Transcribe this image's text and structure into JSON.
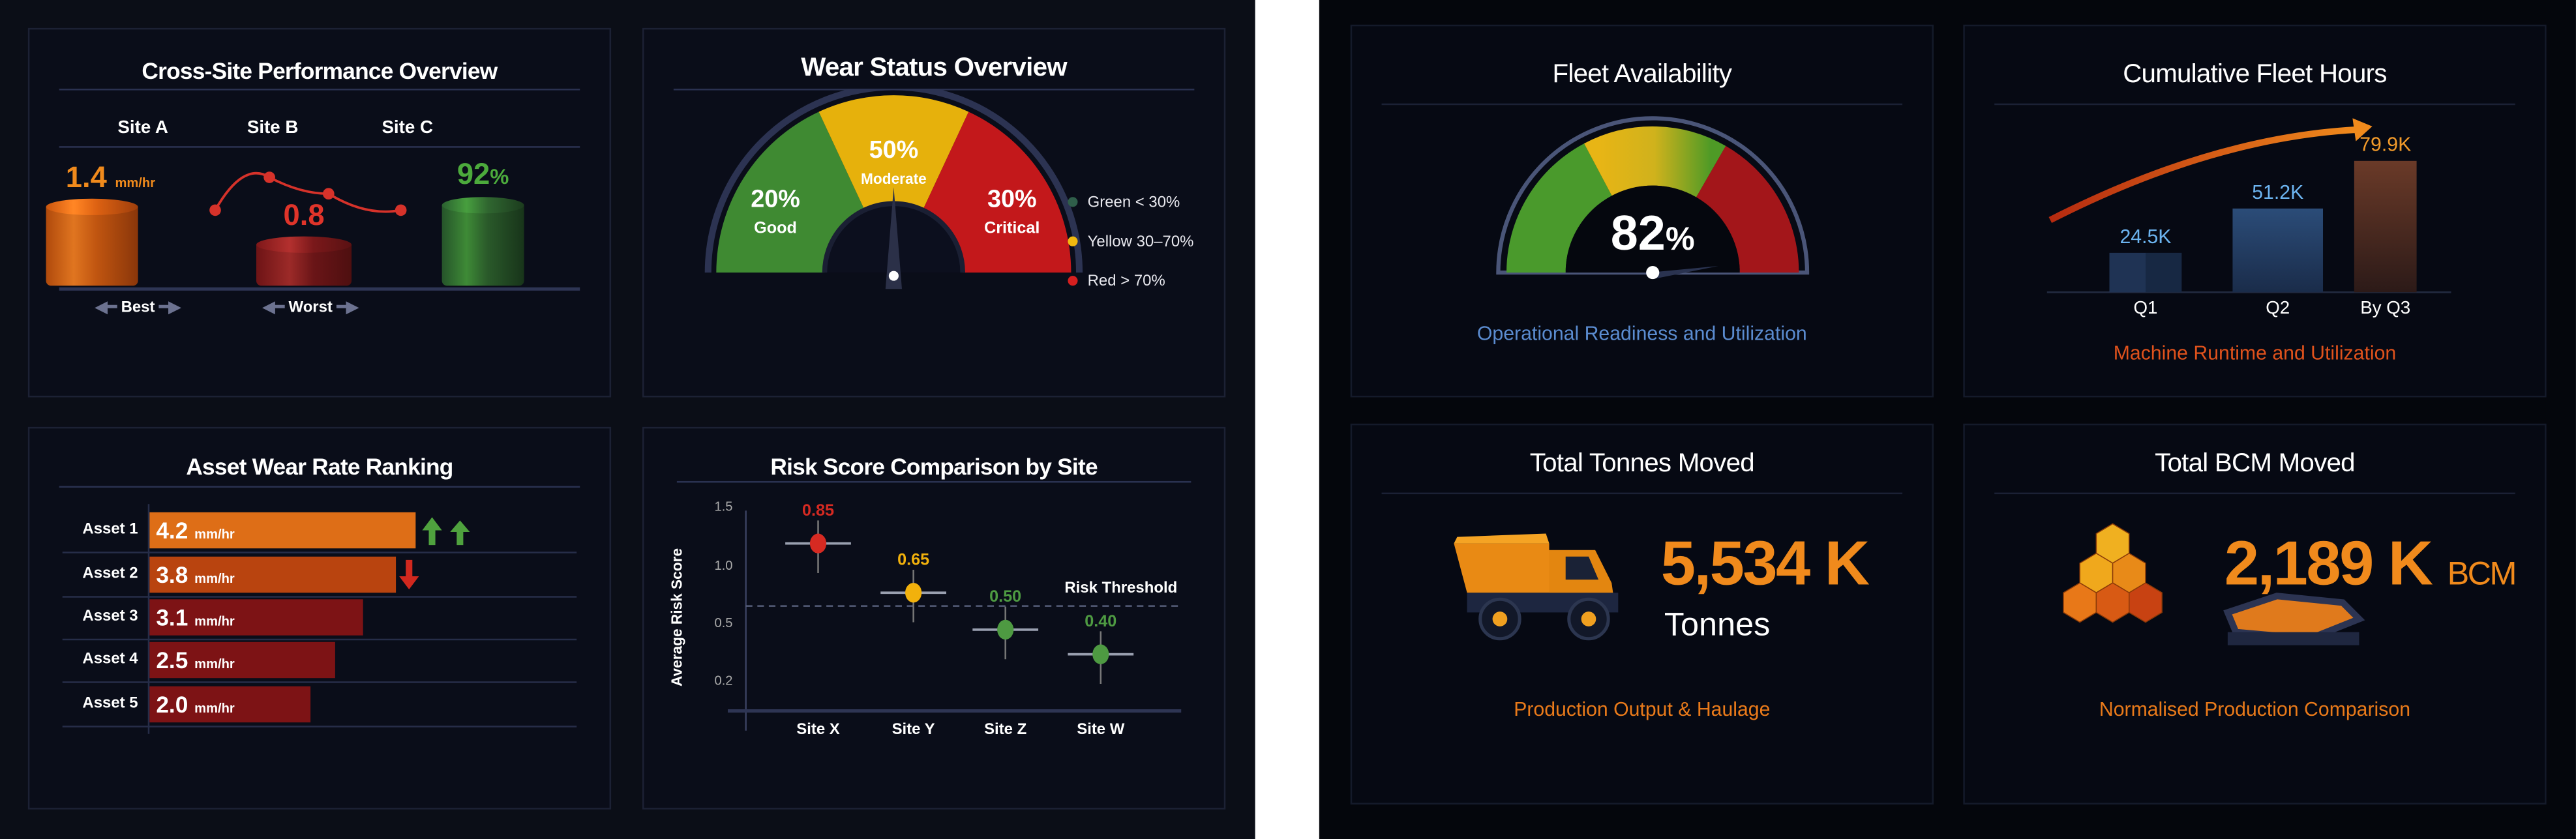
{
  "left_dashboard": {
    "cross_site": {
      "title": "Cross-Site Performance Overview",
      "sites": [
        {
          "label": "Site A",
          "value": "1.4",
          "unit": "mm/hr",
          "color": "#f08a1c"
        },
        {
          "label": "Site B",
          "value": "0.8",
          "unit": "",
          "color": "#e0342a"
        },
        {
          "label": "Site C",
          "value": "92",
          "unit": "%",
          "color": "#4caa3c"
        }
      ],
      "best_label": "Best",
      "worst_label": "Worst"
    },
    "wear_status": {
      "title": "Wear Status Overview",
      "segments": [
        {
          "pct": "20%",
          "label": "Good",
          "color": "#3f8a32"
        },
        {
          "pct": "50%",
          "label": "Moderate",
          "color": "#e6b10c"
        },
        {
          "pct": "30%",
          "label": "Critical",
          "color": "#c3181b"
        }
      ],
      "legend": [
        {
          "label": "Green < 30%",
          "color": "#2f5e4a"
        },
        {
          "label": "Yellow 30–70%",
          "color": "#f2b90f"
        },
        {
          "label": "Red > 70%",
          "color": "#d61f1f"
        }
      ]
    },
    "asset_wear": {
      "title": "Asset Wear Rate Ranking",
      "unit": "mm/hr",
      "assets": [
        {
          "label": "Asset 1",
          "value": 4.2,
          "display": "4.2",
          "trend": "up-up",
          "color": "#de6e17"
        },
        {
          "label": "Asset 2",
          "value": 3.8,
          "display": "3.8",
          "trend": "down",
          "color": "#b9440f"
        },
        {
          "label": "Asset 3",
          "value": 3.1,
          "display": "3.1",
          "trend": "",
          "color": "#7d1315"
        },
        {
          "label": "Asset 4",
          "value": 2.5,
          "display": "2.5",
          "trend": "",
          "color": "#7d1315"
        },
        {
          "label": "Asset 5",
          "value": 2.0,
          "display": "2.0",
          "trend": "",
          "color": "#7d1315"
        }
      ]
    },
    "chart_data": {
      "type": "scatter",
      "title": "Risk Score Comparison by Site",
      "ylabel": "Average Risk Score",
      "xlabel": "",
      "y_ticks": [
        "1.5",
        "1.0",
        "0.5",
        "0.2"
      ],
      "categories": [
        "Site X",
        "Site Y",
        "Site Z",
        "Site W"
      ],
      "values": [
        0.85,
        0.65,
        0.5,
        0.4
      ],
      "value_labels": [
        "0.85",
        "0.65",
        "0.50",
        "0.40"
      ],
      "point_colors": [
        "#d62a22",
        "#f2b10c",
        "#4e9a42",
        "#4e9a42"
      ],
      "threshold_label": "Risk Threshold",
      "threshold": 0.67,
      "grid": false
    }
  },
  "right_dashboard": {
    "fleet_availability": {
      "title": "Fleet Availability",
      "value": "82",
      "unit": "%",
      "subtitle": "Operational Readiness and Utilization",
      "subtitle_color": "#5b8cd0"
    },
    "fleet_hours": {
      "title": "Cumulative Fleet Hours",
      "bars": [
        {
          "label": "Q1",
          "value": 24.5,
          "display": "24.5K",
          "color": "#6cb4f0"
        },
        {
          "label": "Q2",
          "value": 51.2,
          "display": "51.2K",
          "color": "#6cb4f0"
        },
        {
          "label": "By Q3",
          "value": 79.9,
          "display": "79.9K",
          "color": "#f29a2a"
        }
      ],
      "subtitle": "Machine Runtime and Utilization",
      "subtitle_color": "#e0521c"
    },
    "tonnes": {
      "title": "Total Tonnes Moved",
      "value": "5,534 K",
      "unit": "Tonnes",
      "subtitle": "Production Output & Haulage",
      "icon": "dump-truck-icon"
    },
    "bcm": {
      "title": "Total BCM Moved",
      "value": "2,189 K",
      "unit": "BCM",
      "subtitle": "Normalised Production Comparison",
      "icon": "cubes-icon"
    }
  }
}
